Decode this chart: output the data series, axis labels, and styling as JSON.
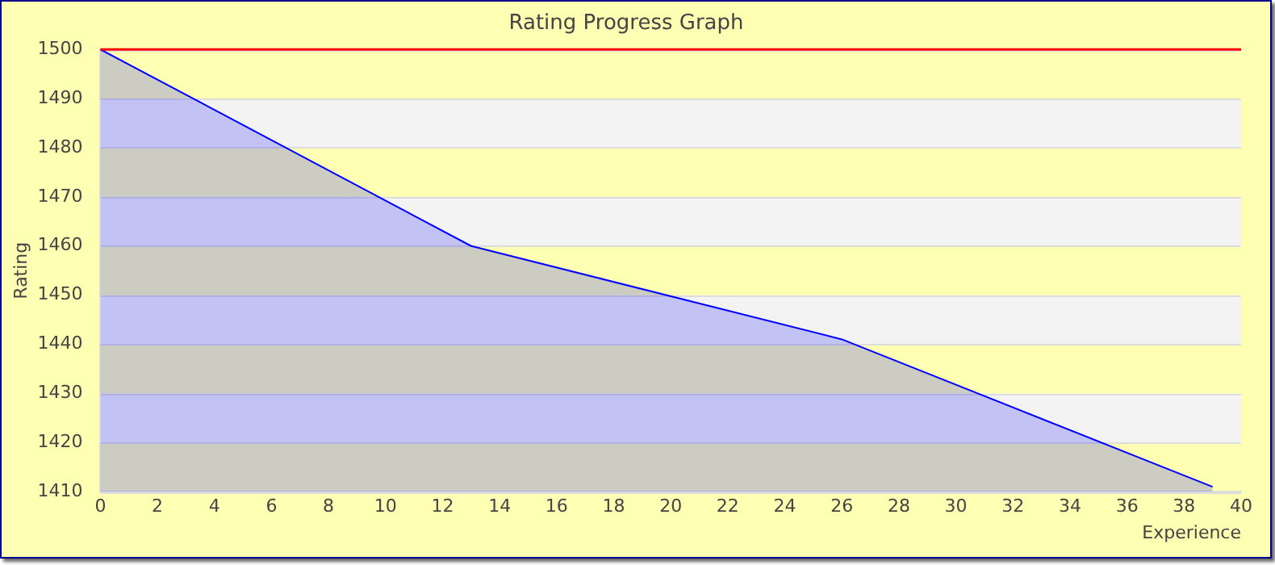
{
  "chart_data": {
    "type": "area",
    "title": "Rating Progress Graph",
    "xlabel": "Experience",
    "ylabel": "Rating",
    "series": [
      {
        "color": "#0000ff",
        "x": [
          0,
          13,
          26,
          39
        ],
        "values": [
          1500,
          1460,
          1441,
          1411
        ]
      }
    ],
    "xlim": [
      0,
      40
    ],
    "xticks": [
      0,
      2,
      4,
      6,
      8,
      10,
      12,
      14,
      16,
      18,
      20,
      22,
      24,
      26,
      28,
      30,
      32,
      34,
      36,
      38,
      40
    ],
    "ylim": [
      1410,
      1500
    ],
    "yticks": [
      1410,
      1420,
      1430,
      1440,
      1450,
      1460,
      1470,
      1480,
      1490,
      1500
    ],
    "ref_lines": [
      {
        "axis": "y",
        "value": 1500,
        "color": "#ff0000"
      }
    ],
    "grid": "y",
    "legend": false
  }
}
